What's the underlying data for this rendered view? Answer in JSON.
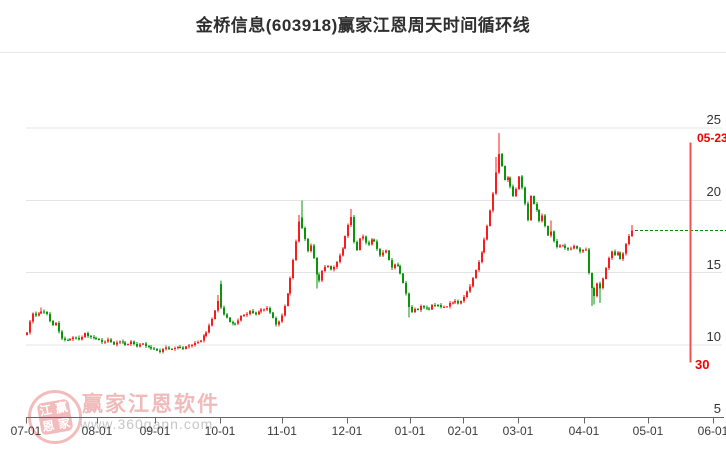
{
  "title": "金桥信息(603918)赢家江恩周天时间循环线",
  "watermark": {
    "seal_chars": [
      "江",
      "赢",
      "恩",
      "家"
    ],
    "brand": "赢家江恩软件",
    "url": "www.360gann.com"
  },
  "colors": {
    "up": "#f71d1d",
    "down": "#0a950a",
    "grid": "#e4e4e4",
    "axis": "#666666",
    "cycle_line": "#f75050",
    "cycle_label": "#f20000",
    "last_price_line": "#0a8a0a",
    "title_text": "#2f2f2f",
    "watermark_pink": "#f0baba",
    "watermark_gray": "#c6c6c6"
  },
  "x_axis": {
    "labels": [
      "07-01",
      "08-01",
      "09-01",
      "10-01",
      "11-01",
      "12-01",
      "01-01",
      "02-01",
      "03-01",
      "04-01",
      "05-01",
      "06-01"
    ]
  },
  "y_axis": {
    "labels": [
      "25",
      "20",
      "15",
      "10",
      "5"
    ],
    "values": [
      25,
      20,
      15,
      10,
      5
    ]
  },
  "cycle_line": {
    "date_label": "05-23",
    "count_label": "30",
    "price_top": 24.0,
    "price_bottom": 8.8
  },
  "last_price_line": {
    "price": 17.9
  },
  "chart_data": {
    "type": "candlestick",
    "title": "金桥信息(603918)赢家江恩周天时间循环线",
    "ylim": [
      5,
      25
    ],
    "grid_prices": [
      25,
      20,
      15,
      10
    ],
    "x_tick_labels": [
      "07-01",
      "08-01",
      "09-01",
      "10-01",
      "11-01",
      "12-01",
      "01-01",
      "02-01",
      "03-01",
      "04-01",
      "05-01",
      "06-01"
    ],
    "num_candles": 210,
    "first_open": 10.7,
    "close_anchors": [
      [
        0,
        10.9
      ],
      [
        1,
        11.6
      ],
      [
        2,
        12.2
      ],
      [
        3,
        12.0
      ],
      [
        5,
        12.35
      ],
      [
        7,
        12.15
      ],
      [
        8,
        11.7
      ],
      [
        9,
        11.35
      ],
      [
        10,
        11.55
      ],
      [
        11,
        10.9
      ],
      [
        12,
        10.45
      ],
      [
        14,
        10.3
      ],
      [
        16,
        10.55
      ],
      [
        18,
        10.4
      ],
      [
        20,
        10.8
      ],
      [
        22,
        10.5
      ],
      [
        24,
        10.45
      ],
      [
        26,
        10.2
      ],
      [
        28,
        10.35
      ],
      [
        30,
        10.1
      ],
      [
        32,
        10.25
      ],
      [
        34,
        10.0
      ],
      [
        36,
        10.2
      ],
      [
        38,
        9.95
      ],
      [
        40,
        10.1
      ],
      [
        42,
        9.85
      ],
      [
        44,
        9.7
      ],
      [
        46,
        9.55
      ],
      [
        48,
        9.85
      ],
      [
        50,
        9.7
      ],
      [
        52,
        9.9
      ],
      [
        54,
        9.75
      ],
      [
        56,
        9.95
      ],
      [
        58,
        10.1
      ],
      [
        60,
        10.35
      ],
      [
        62,
        10.9
      ],
      [
        63,
        11.3
      ],
      [
        64,
        11.8
      ],
      [
        65,
        12.4
      ],
      [
        66,
        13.0
      ],
      [
        67,
        12.6
      ],
      [
        68,
        12.15
      ],
      [
        70,
        11.6
      ],
      [
        72,
        11.45
      ],
      [
        74,
        11.95
      ],
      [
        77,
        12.3
      ],
      [
        79,
        12.15
      ],
      [
        81,
        12.45
      ],
      [
        83,
        12.55
      ],
      [
        84,
        12.25
      ],
      [
        86,
        11.4
      ],
      [
        87,
        11.65
      ],
      [
        88,
        12.0
      ],
      [
        89,
        12.7
      ],
      [
        90,
        13.6
      ],
      [
        91,
        14.6
      ],
      [
        92,
        15.9
      ],
      [
        93,
        17.2
      ],
      [
        94,
        18.5
      ],
      [
        95,
        18.1
      ],
      [
        96,
        17.3
      ],
      [
        97,
        16.5
      ],
      [
        98,
        16.9
      ],
      [
        99,
        16.0
      ],
      [
        100,
        14.9
      ],
      [
        101,
        14.5
      ],
      [
        102,
        15.1
      ],
      [
        103,
        15.4
      ],
      [
        104,
        15.5
      ],
      [
        105,
        15.2
      ],
      [
        106,
        15.4
      ],
      [
        107,
        15.7
      ],
      [
        108,
        16.2
      ],
      [
        109,
        16.7
      ],
      [
        110,
        17.5
      ],
      [
        111,
        18.3
      ],
      [
        112,
        18.9
      ],
      [
        113,
        17.1
      ],
      [
        114,
        16.6
      ],
      [
        115,
        17.3
      ],
      [
        116,
        17.5
      ],
      [
        117,
        17.1
      ],
      [
        118,
        16.9
      ],
      [
        119,
        17.3
      ],
      [
        120,
        17.2
      ],
      [
        121,
        16.6
      ],
      [
        122,
        16.2
      ],
      [
        123,
        16.45
      ],
      [
        124,
        16.5
      ],
      [
        125,
        15.9
      ],
      [
        126,
        15.3
      ],
      [
        127,
        15.55
      ],
      [
        128,
        15.5
      ],
      [
        129,
        14.9
      ],
      [
        130,
        14.3
      ],
      [
        131,
        13.6
      ],
      [
        132,
        12.6
      ],
      [
        133,
        12.3
      ],
      [
        134,
        12.55
      ],
      [
        135,
        12.4
      ],
      [
        136,
        12.7
      ],
      [
        137,
        12.55
      ],
      [
        139,
        12.5
      ],
      [
        140,
        12.75
      ],
      [
        142,
        12.8
      ],
      [
        143,
        12.6
      ],
      [
        145,
        12.7
      ],
      [
        146,
        12.9
      ],
      [
        148,
        13.0
      ],
      [
        149,
        12.85
      ],
      [
        151,
        13.3
      ],
      [
        152,
        13.7
      ],
      [
        153,
        14.1
      ],
      [
        154,
        14.6
      ],
      [
        155,
        15.2
      ],
      [
        156,
        15.8
      ],
      [
        157,
        16.4
      ],
      [
        158,
        17.3
      ],
      [
        159,
        18.2
      ],
      [
        160,
        19.3
      ],
      [
        161,
        20.5
      ],
      [
        162,
        21.9
      ],
      [
        163,
        23.2
      ],
      [
        164,
        22.4
      ],
      [
        165,
        21.4
      ],
      [
        166,
        21.6
      ],
      [
        167,
        20.9
      ],
      [
        168,
        20.3
      ],
      [
        169,
        20.8
      ],
      [
        170,
        21.6
      ],
      [
        171,
        20.9
      ],
      [
        172,
        19.8
      ],
      [
        173,
        18.6
      ],
      [
        174,
        20.3
      ],
      [
        175,
        19.8
      ],
      [
        176,
        19.3
      ],
      [
        177,
        18.6
      ],
      [
        178,
        18.9
      ],
      [
        179,
        18.2
      ],
      [
        180,
        17.6
      ],
      [
        181,
        17.8
      ],
      [
        182,
        17.2
      ],
      [
        183,
        16.8
      ],
      [
        185,
        16.9
      ],
      [
        187,
        16.6
      ],
      [
        189,
        16.8
      ],
      [
        191,
        16.5
      ],
      [
        193,
        16.6
      ],
      [
        194,
        15.0
      ],
      [
        195,
        13.9
      ],
      [
        196,
        13.4
      ],
      [
        197,
        14.3
      ],
      [
        198,
        13.9
      ],
      [
        199,
        14.6
      ],
      [
        200,
        15.3
      ],
      [
        201,
        16.0
      ],
      [
        202,
        16.5
      ],
      [
        203,
        16.2
      ],
      [
        204,
        16.4
      ],
      [
        205,
        16.0
      ],
      [
        206,
        16.3
      ],
      [
        207,
        17.0
      ],
      [
        208,
        17.6
      ],
      [
        209,
        17.9
      ]
    ],
    "gap_opens": {
      "67": 14.2,
      "95": 18.8
    },
    "wick_overrides": {
      "5": [
        12.6,
        null
      ],
      "46": [
        null,
        9.42
      ],
      "66": [
        13.45,
        null
      ],
      "67": [
        14.45,
        null
      ],
      "94": [
        19.0,
        null
      ],
      "95": [
        20.0,
        null
      ],
      "100": [
        null,
        13.9
      ],
      "112": [
        19.4,
        null
      ],
      "132": [
        null,
        11.9
      ],
      "162": [
        23.0,
        null
      ],
      "163": [
        24.66,
        null
      ],
      "181": [
        18.6,
        null
      ],
      "195": [
        null,
        12.7
      ],
      "196": [
        null,
        12.8
      ],
      "198": [
        null,
        12.9
      ],
      "209": [
        18.3,
        null
      ]
    }
  }
}
